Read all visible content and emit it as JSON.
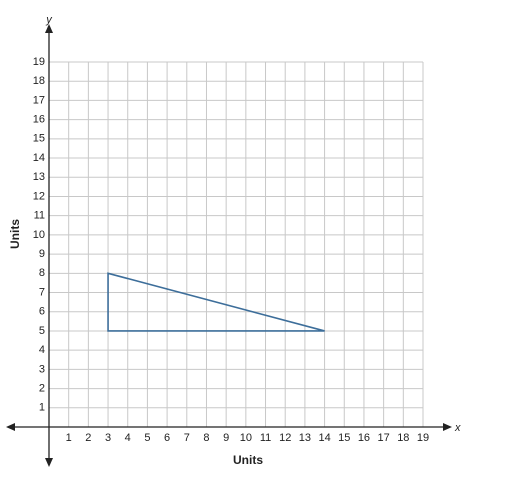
{
  "chart_data": {
    "type": "polygon",
    "x_axis_name": "x",
    "y_axis_name": "y",
    "x_label": "Units",
    "y_label": "Units",
    "x": [
      3,
      3,
      14
    ],
    "values": [
      8,
      5,
      5
    ],
    "color": "#3d6e9a",
    "xlim": [
      0,
      19
    ],
    "ylim": [
      0,
      19
    ],
    "xticks": [
      1,
      2,
      3,
      4,
      5,
      6,
      7,
      8,
      9,
      10,
      11,
      12,
      13,
      14,
      15,
      16,
      17,
      18,
      19
    ],
    "yticks": [
      1,
      2,
      3,
      4,
      5,
      6,
      7,
      8,
      9,
      10,
      11,
      12,
      13,
      14,
      15,
      16,
      17,
      18,
      19
    ],
    "grid": true
  }
}
